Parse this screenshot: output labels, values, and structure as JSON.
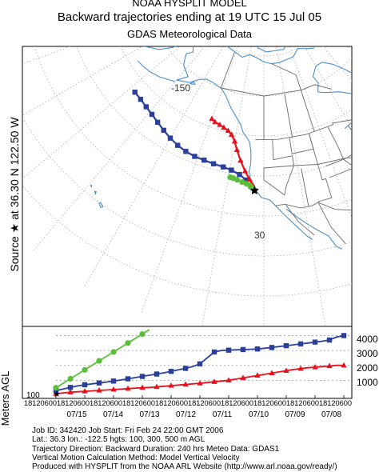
{
  "header": {
    "line1": "NOAA HYSPLIT MODEL",
    "line2": "Backward trajectories ending at 19 UTC 15 Jul 05",
    "line3": "GDAS Meteorological Data"
  },
  "source_label": "Source ★ at 36.30 N 122.50 W",
  "map": {
    "lon_labels": [
      "-150"
    ],
    "lat_labels": [
      "30"
    ]
  },
  "altitude_panel": {
    "ylabel": "Meters AGL",
    "y_ticks": [
      "4000",
      "3000",
      "2000",
      "1000"
    ],
    "start_tick": "100",
    "time_labels": [
      "18",
      "12",
      "06",
      "00",
      "18",
      "12",
      "06",
      "00",
      "18",
      "12",
      "06",
      "00",
      "18",
      "12",
      "06",
      "00",
      "18",
      "12",
      "06",
      "00",
      "18",
      "12",
      "06",
      "00",
      "18",
      "12",
      "06",
      "00",
      "18",
      "12",
      "06",
      "00"
    ],
    "time_label_string": "18120600181206001812060018120600181206001812060018120600181206001812060018120600",
    "dates": [
      "07/15",
      "07/14",
      "07/13",
      "07/12",
      "07/11",
      "07/10",
      "07/09",
      "07/08"
    ]
  },
  "footer": {
    "line1": "Job ID: 342420          Job Start: Fri Feb 24 22:00 GMT 2006",
    "line2": "Lat.: 36.3  lon.: -122.5  hgts: 100, 300, 500 m AGL",
    "line3": "Trajectory Direction: Backward    Duration: 240 hrs    Meteo Data: GDAS1",
    "line4": "Vertical Motion Calculation Method:  Model Vertical Velocity",
    "line5": "Produced with HYSPLIT from the NOAA ARL Website (http://www.arl.noaa.gov/ready/)"
  },
  "colors": {
    "red": "#e8101a",
    "blue": "#2a3f9a",
    "green": "#5bbf3a",
    "coast": "#4a8fc9",
    "border": "#6b6b6b",
    "grid": "#b0b0b0"
  },
  "chart_data": {
    "type": "line",
    "ylabel": "Meters AGL",
    "xlabel": "",
    "ylim": [
      0,
      4400
    ],
    "x_hours_back": [
      0,
      6,
      12,
      18,
      24,
      30,
      36,
      42,
      48,
      54,
      60,
      66,
      72,
      78,
      84,
      90,
      96,
      102,
      108,
      114,
      120,
      126,
      132,
      138,
      144,
      150,
      156,
      162,
      168,
      174,
      180,
      186,
      192,
      198,
      204,
      210,
      216,
      222,
      228,
      234,
      240
    ],
    "series": [
      {
        "name": "",
        "color": "red",
        "marker": "triangle",
        "start_height_m": 100,
        "values": [
          100,
          150,
          200,
          230,
          260,
          290,
          320,
          350,
          380,
          410,
          440,
          470,
          500,
          520,
          560,
          600,
          640,
          680,
          720,
          760,
          800,
          850,
          900,
          950,
          1000,
          1080,
          1160,
          1240,
          1320,
          1400,
          1480,
          1560,
          1640,
          1720,
          1780,
          1840,
          1880,
          1920,
          1960,
          2000,
          2000
        ]
      },
      {
        "name": "",
        "color": "blue",
        "marker": "square",
        "start_height_m": 300,
        "values": [
          300,
          420,
          520,
          620,
          700,
          760,
          820,
          880,
          950,
          1020,
          1100,
          1180,
          1260,
          1340,
          1420,
          1500,
          1600,
          1700,
          1800,
          1920,
          2100,
          2500,
          2900,
          3000,
          3020,
          3040,
          3060,
          3080,
          3100,
          3150,
          3200,
          3260,
          3320,
          3380,
          3440,
          3500,
          3560,
          3620,
          3700,
          3900,
          4000
        ]
      },
      {
        "name": "",
        "color": "green",
        "marker": "circle",
        "start_height_m": 500,
        "values": [
          500,
          800,
          1100,
          1400,
          1700,
          2000,
          2300,
          2600,
          2900,
          3200,
          3500,
          3800,
          4100,
          4400
        ]
      }
    ]
  },
  "trajectories_map": {
    "blue": [
      [
        -122.5,
        36.3
      ],
      [
        -123.5,
        37.3
      ],
      [
        -125,
        38.8
      ],
      [
        -127,
        40
      ],
      [
        -129.5,
        40.8
      ],
      [
        -132,
        41.2
      ],
      [
        -135,
        41.4
      ],
      [
        -138,
        41.6
      ],
      [
        -141,
        41.7
      ],
      [
        -144,
        42
      ],
      [
        -147,
        42.5
      ],
      [
        -150,
        43.2
      ],
      [
        -153,
        44
      ],
      [
        -156,
        44.8
      ],
      [
        -159,
        45.5
      ],
      [
        -162,
        46
      ],
      [
        -165,
        46.4
      ],
      [
        -168,
        46.6
      ]
    ],
    "red": [
      [
        -122.5,
        36.3
      ],
      [
        -123,
        37.5
      ],
      [
        -124,
        39
      ],
      [
        -125.5,
        41
      ],
      [
        -127.2,
        43.5
      ],
      [
        -128.8,
        46
      ],
      [
        -130,
        48
      ],
      [
        -131.5,
        49.5
      ],
      [
        -133,
        50.3
      ],
      [
        -134.8,
        50.8
      ],
      [
        -136.5,
        51.2
      ],
      [
        -138.5,
        51.5
      ],
      [
        -140,
        52
      ]
    ],
    "green": [
      [
        -122.5,
        36.3
      ],
      [
        -123,
        36.9
      ],
      [
        -123.8,
        37.5
      ],
      [
        -124.8,
        37.9
      ],
      [
        -126,
        38.2
      ],
      [
        -127.5,
        38.6
      ],
      [
        -128.6,
        38.9
      ],
      [
        -129.5,
        39
      ]
    ]
  }
}
